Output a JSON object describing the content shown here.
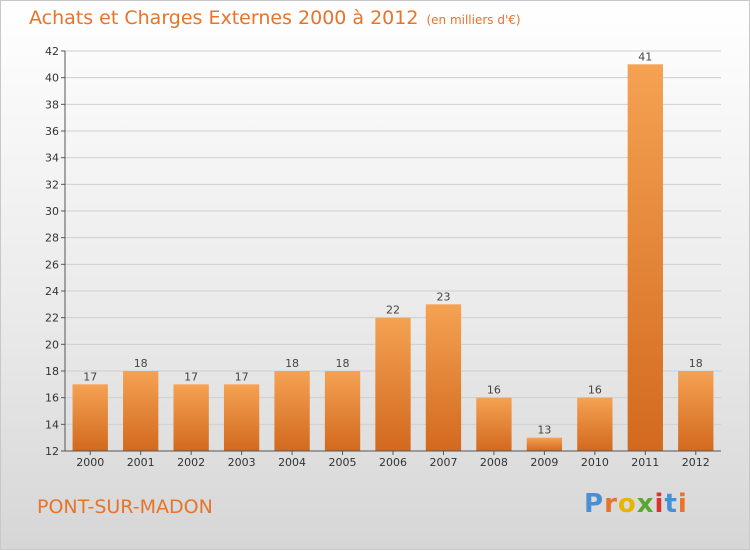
{
  "header": {
    "title": "Achats et Charges Externes 2000 à 2012",
    "subtitle": "(en milliers d'€)"
  },
  "footer": {
    "commune": "PONT-SUR-MADON"
  },
  "logo": {
    "letters": [
      "P",
      "r",
      "o",
      "x",
      "i",
      "t",
      "i"
    ],
    "colors": [
      "#4a8fd4",
      "#e8732a",
      "#e8b400",
      "#5aa832",
      "#d8342c",
      "#4a8fd4",
      "#e8732a"
    ]
  },
  "colors": {
    "accent": "#e8732a",
    "bar_top": "#f5a253",
    "bar_bottom": "#d2691e",
    "grid": "#cfcfcf"
  },
  "chart_data": {
    "type": "bar",
    "title": "Achats et Charges Externes 2000 à 2012",
    "subtitle": "(en milliers d'€)",
    "categories": [
      "2000",
      "2001",
      "2002",
      "2003",
      "2004",
      "2005",
      "2006",
      "2007",
      "2008",
      "2009",
      "2010",
      "2011",
      "2012"
    ],
    "values": [
      17,
      18,
      17,
      17,
      18,
      18,
      22,
      23,
      16,
      13,
      16,
      41,
      18
    ],
    "ylim": [
      12,
      42
    ],
    "yticks": [
      12,
      14,
      16,
      18,
      20,
      22,
      24,
      26,
      28,
      30,
      32,
      34,
      36,
      38,
      40,
      42
    ],
    "grid": true,
    "legend": "none"
  }
}
